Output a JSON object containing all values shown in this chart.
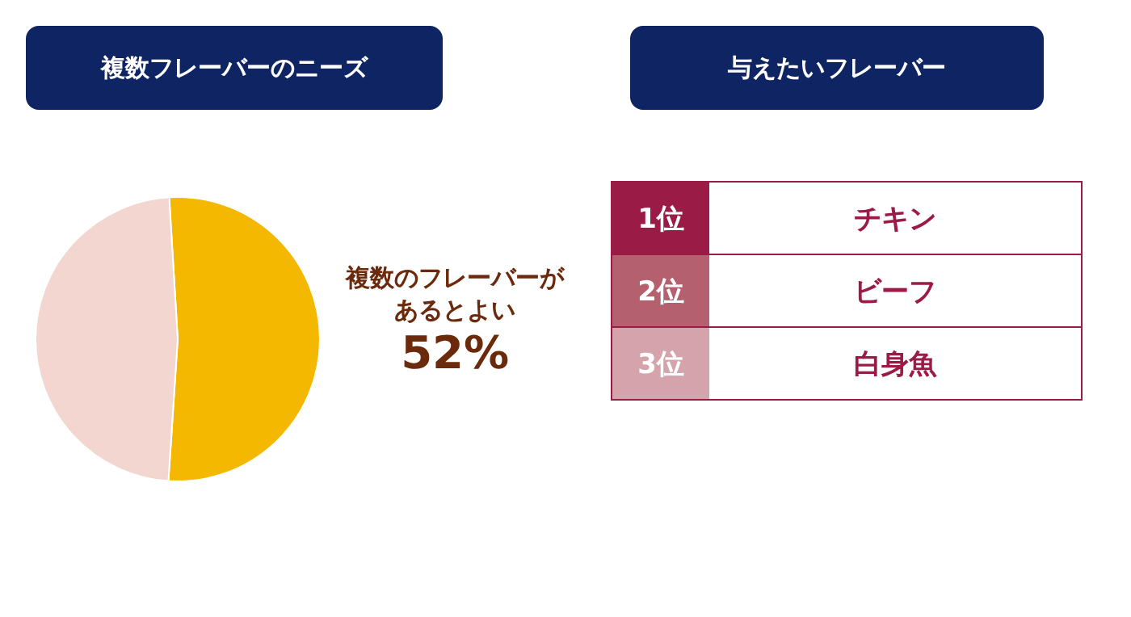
{
  "chart_data": [
    {
      "type": "pie",
      "title": "複数フレーバーのニーズ",
      "categories": [
        "複数のフレーバーがあるとよい",
        null
      ],
      "values": [
        52,
        48
      ],
      "colors": [
        "#f5b800",
        "#f2d6cf"
      ],
      "value_labels": [
        "52%",
        null
      ]
    },
    {
      "type": "other",
      "title": "与えたいフレーバー",
      "categories": [
        "1位",
        "2位",
        "3位"
      ],
      "annotations": [
        "チキン",
        "ビーフ",
        "白身魚"
      ]
    }
  ]
}
